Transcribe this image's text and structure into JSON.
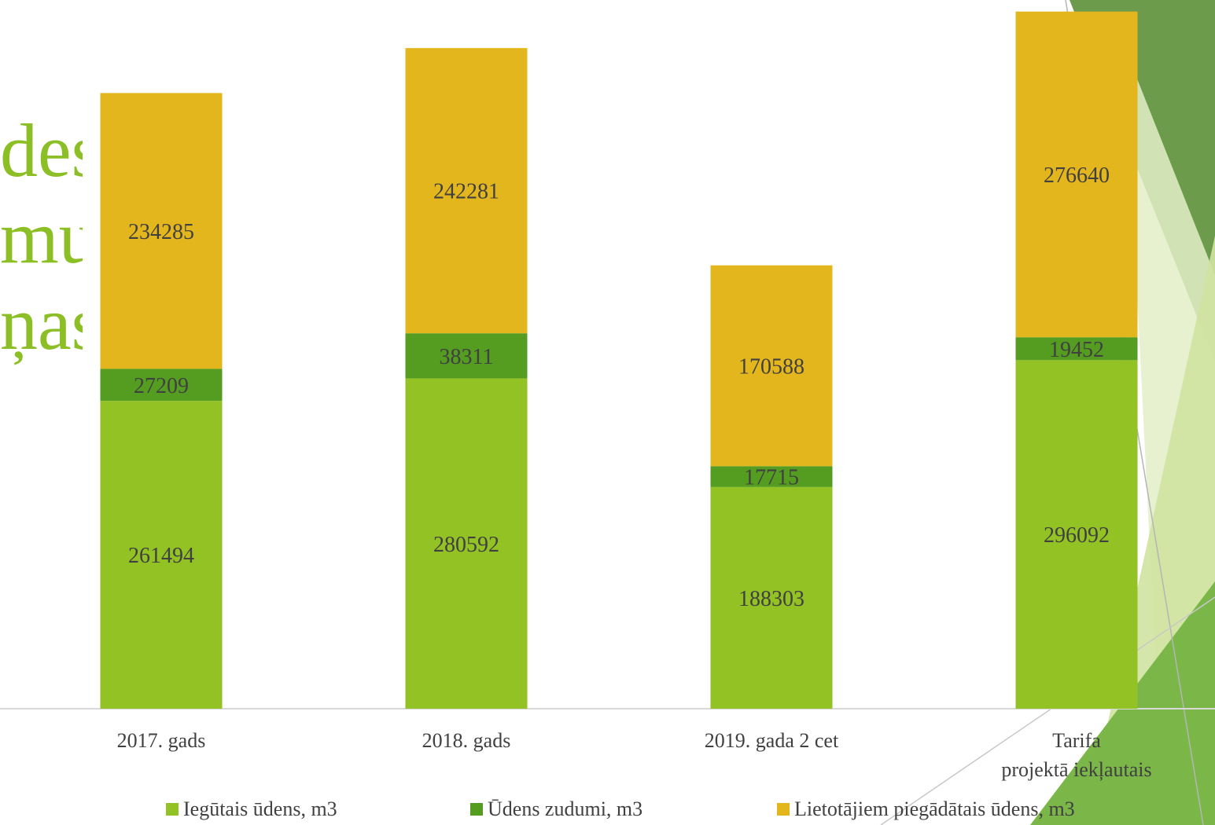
{
  "title_fragments": [
    "des",
    "mu",
    "ņas"
  ],
  "colors": {
    "series1": "#93c225",
    "series2": "#559d21",
    "series3": "#e4b61e",
    "title": "#8cbf26",
    "text": "#404040",
    "deco_dark": "#6d9b4c",
    "deco_mid": "#7ab648",
    "deco_light": "#cfe3a0",
    "deco_pale": "#e3efc8"
  },
  "chart_data": {
    "type": "bar",
    "stacked": true,
    "categories": [
      "2017. gads",
      "2018. gads",
      "2019. gada 2 cet",
      "Tarifa projektā iekļautais"
    ],
    "category_lines": [
      [
        "2017. gads"
      ],
      [
        "2018. gads"
      ],
      [
        "2019. gada 2 cet"
      ],
      [
        "Tarifa",
        "projektā iekļautais"
      ]
    ],
    "series": [
      {
        "name": "Iegūtais ūdens, m3",
        "values": [
          261494,
          280592,
          188303,
          296092
        ]
      },
      {
        "name": "Ūdens zudumi, m3",
        "values": [
          27209,
          38311,
          17715,
          19452
        ]
      },
      {
        "name": "Lietotājiem piegādātais ūdens, m3",
        "values": [
          234285,
          242281,
          170588,
          276640
        ]
      }
    ],
    "data_labels": true,
    "ylim": [
      0,
      600000
    ],
    "grid": false,
    "legend": "bottom"
  }
}
